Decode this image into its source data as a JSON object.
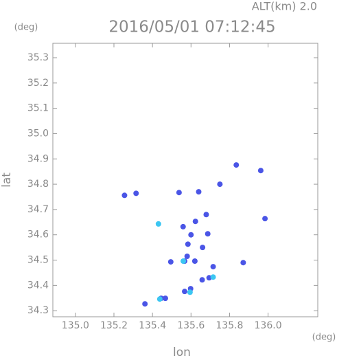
{
  "chart_data": {
    "type": "scatter",
    "title": "2016/05/01 07:12:45",
    "annotation": "ALT(km) 2.0",
    "y_unit": "(deg)",
    "x_unit": "(deg)",
    "x_label": "lon",
    "y_label": "lat",
    "xlim": [
      134.883,
      136.258
    ],
    "ylim": [
      34.276,
      35.357
    ],
    "xticks": [
      {
        "value": 135.0,
        "label": "135.0"
      },
      135.2,
      135.4,
      135.6,
      135.8,
      {
        "value": 136.0,
        "label": "136.0"
      }
    ],
    "yticks": [
      34.3,
      34.4,
      34.5,
      34.6,
      34.7,
      34.8,
      34.9,
      {
        "value": 35.0,
        "label": "35.0"
      },
      35.1,
      35.2,
      35.3
    ],
    "series": [
      {
        "color": "#4a55e6",
        "x": [
          135.255,
          135.315,
          135.538,
          135.64,
          135.75,
          135.835,
          135.962,
          135.984,
          135.559,
          135.623,
          135.679,
          135.584,
          135.6,
          135.58,
          135.567,
          135.495,
          135.687,
          135.66,
          135.62,
          135.715,
          135.694,
          135.658,
          135.598,
          135.567,
          135.871,
          135.467,
          135.445,
          135.361
        ],
        "y": [
          34.756,
          34.764,
          34.767,
          34.77,
          34.8,
          34.876,
          34.854,
          34.664,
          34.632,
          34.653,
          34.68,
          34.563,
          34.6,
          34.515,
          34.496,
          34.493,
          34.604,
          34.55,
          34.496,
          34.474,
          34.43,
          34.422,
          34.387,
          34.376,
          34.49,
          34.349,
          34.349,
          34.327
        ]
      },
      {
        "color": "#3cc6f2",
        "x": [
          135.438,
          135.56,
          135.431,
          135.715,
          135.595
        ],
        "y": [
          34.346,
          34.496,
          34.643,
          34.433,
          34.373
        ]
      }
    ]
  }
}
